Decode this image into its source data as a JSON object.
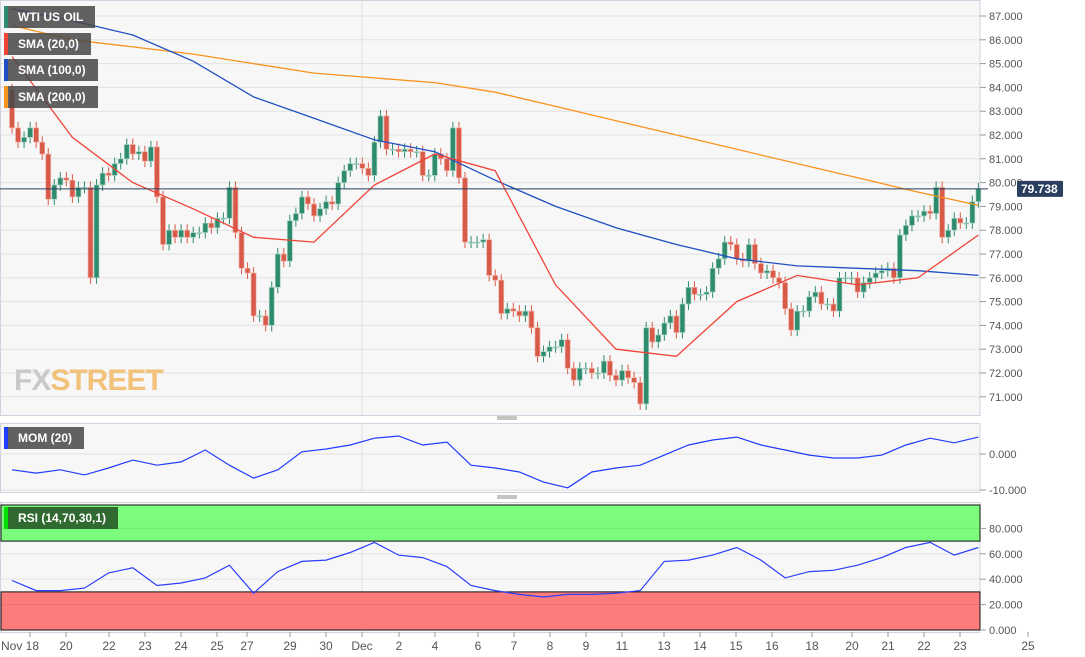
{
  "chart_data": [
    {
      "type": "candlestick",
      "panel": "price",
      "legend": [
        {
          "label": "WTI US OIL",
          "color": "#2e8b6e"
        },
        {
          "label": "SMA (20,0)",
          "color": "#f04438"
        },
        {
          "label": "SMA (100,0)",
          "color": "#1f4fc1"
        },
        {
          "label": "SMA (200,0)",
          "color": "#f7931e"
        }
      ],
      "current_price": "79.738",
      "current_value": 79.738,
      "y_ticks": [
        "87.000",
        "86.000",
        "85.000",
        "84.000",
        "83.000",
        "82.000",
        "81.000",
        "80.000",
        "79.000",
        "78.000",
        "77.000",
        "76.000",
        "75.000",
        "74.000",
        "73.000",
        "72.000",
        "71.000"
      ],
      "ylim": [
        70.2,
        87.6
      ],
      "first_open": 83.9,
      "closes": [
        82.3,
        81.7,
        81.9,
        82.3,
        81.7,
        81.2,
        79.3,
        79.9,
        80.2,
        80.1,
        79.4,
        79.8,
        79.8,
        76.0,
        79.9,
        80.4,
        80.3,
        80.8,
        81.0,
        81.6,
        81.2,
        81.3,
        80.9,
        81.5,
        79.4,
        77.4,
        78.0,
        77.7,
        78.0,
        77.7,
        77.9,
        77.9,
        78.3,
        78.1,
        78.5,
        78.5,
        79.8,
        77.9,
        76.4,
        76.2,
        74.4,
        74.4,
        74.0,
        75.6,
        77.0,
        76.7,
        78.4,
        78.7,
        79.4,
        79.1,
        78.6,
        78.9,
        79.2,
        79.1,
        80.0,
        80.5,
        80.8,
        80.8,
        80.6,
        80.3,
        81.7,
        82.8,
        81.4,
        81.4,
        81.3,
        81.4,
        81.3,
        81.3,
        80.3,
        80.3,
        81.2,
        81.0,
        80.5,
        82.3,
        80.2,
        77.5,
        77.5,
        77.5,
        77.6,
        76.1,
        75.9,
        74.5,
        74.7,
        74.6,
        74.4,
        74.6,
        73.9,
        72.7,
        72.9,
        73.1,
        73.1,
        73.4,
        72.2,
        71.7,
        72.2,
        72.2,
        72.0,
        72.0,
        72.5,
        71.9,
        71.7,
        72.1,
        71.8,
        71.6,
        70.7,
        73.9,
        73.3,
        73.6,
        74.1,
        74.4,
        73.7,
        74.9,
        75.6,
        75.3,
        75.3,
        75.4,
        76.4,
        76.8,
        77.5,
        77.4,
        76.8,
        76.7,
        77.4,
        76.6,
        76.2,
        76.3,
        76.0,
        75.8,
        74.7,
        73.8,
        74.6,
        74.6,
        75.2,
        75.4,
        74.9,
        74.9,
        74.6,
        76.0,
        76.0,
        76.0,
        75.4,
        75.8,
        76.0,
        76.2,
        76.3,
        76.4,
        76.0,
        77.8,
        78.2,
        78.6,
        78.6,
        78.8,
        78.7,
        79.8,
        77.7,
        78.0,
        78.5,
        78.3,
        78.3,
        79.2,
        79.74
      ],
      "sma_sample_every": 10,
      "sma20": [
        85.3,
        81.9,
        80.0,
        78.9,
        77.7,
        77.5,
        79.9,
        81.2,
        80.5,
        75.7,
        73.0,
        72.7,
        75.0,
        76.1,
        75.7,
        76.0,
        77.8
      ],
      "sma100": [
        87.3,
        86.8,
        86.2,
        85.1,
        83.6,
        82.7,
        81.8,
        81.3,
        80.1,
        79.0,
        78.1,
        77.4,
        76.8,
        76.5,
        76.4,
        76.3,
        76.1
      ],
      "sma200": [
        86.6,
        86.0,
        85.7,
        85.4,
        85.0,
        84.6,
        84.4,
        84.2,
        83.8,
        83.2,
        82.6,
        82.0,
        81.4,
        80.8,
        80.2,
        79.6,
        79.05
      ],
      "colors": {
        "up": "#2e8b6e",
        "down": "#d85a48",
        "price_line": "#2a3f5f"
      }
    },
    {
      "type": "line",
      "panel": "momentum",
      "legend": {
        "label": "MOM (20)",
        "color": "#1f3cff"
      },
      "y_ticks": [
        "0.000",
        "-10.000"
      ],
      "ylim": [
        -10,
        8.8
      ],
      "sample_every": 4,
      "values": [
        -4.4,
        -5.3,
        -4.4,
        -5.8,
        -3.9,
        -1.7,
        -3.1,
        -2.2,
        1.1,
        -3.1,
        -6.7,
        -4.4,
        0.6,
        1.4,
        2.5,
        4.4,
        5.0,
        2.5,
        3.3,
        -3.1,
        -3.9,
        -5.0,
        -7.8,
        -9.4,
        -5.0,
        -3.9,
        -3.1,
        -0.3,
        2.5,
        3.9,
        4.7,
        2.5,
        1.1,
        -0.3,
        -1.1,
        -1.1,
        -0.3,
        2.5,
        4.4,
        3.1,
        4.7
      ]
    },
    {
      "type": "line",
      "panel": "rsi",
      "legend": {
        "label": "RSI (14,70,30,1)",
        "color": "#00e000"
      },
      "y_ticks": [
        "80.000",
        "60.000",
        "40.000",
        "20.000",
        "0.000"
      ],
      "ylim": [
        0,
        100
      ],
      "overbought": 70,
      "oversold": 30,
      "sample_every": 4,
      "values": [
        39,
        31,
        31,
        33,
        45,
        49,
        35,
        37,
        41,
        51,
        29,
        46,
        54,
        55,
        61,
        69,
        59,
        57,
        50,
        35,
        31,
        28,
        26,
        28,
        28,
        29,
        31,
        54,
        55,
        59,
        65,
        55,
        41,
        46,
        47,
        51,
        57,
        65,
        69,
        59,
        65
      ],
      "colors": {
        "overbought_band": "#7cfc7c",
        "oversold_band": "#fc7c7c",
        "line": "#2a3cff"
      }
    }
  ],
  "x_labels": [
    "Nov 18",
    "20",
    "22",
    "23",
    "24",
    "25",
    "27",
    "29",
    "30",
    "Dec",
    "2",
    "4",
    "6",
    "7",
    "8",
    "9",
    "11",
    "13",
    "14",
    "15",
    "16",
    "18",
    "20",
    "21",
    "22",
    "23",
    "25"
  ],
  "watermark": "FXSTREET"
}
